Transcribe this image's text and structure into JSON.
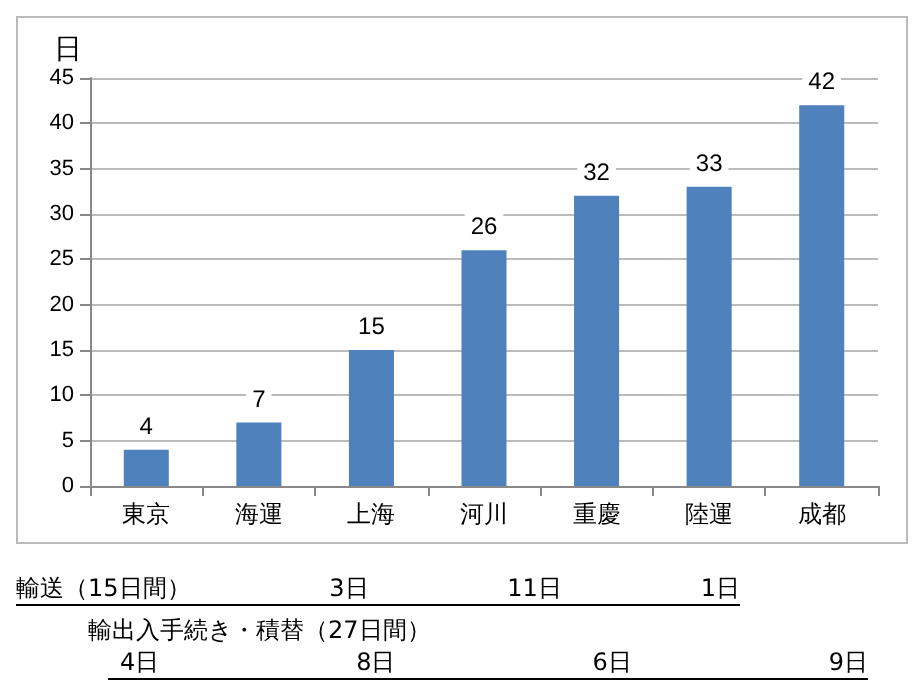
{
  "chart_data": {
    "type": "bar",
    "ylabel": "日",
    "categories": [
      "東京",
      "海運",
      "上海",
      "河川",
      "重慶",
      "陸運",
      "成都"
    ],
    "values": [
      4,
      7,
      15,
      26,
      32,
      33,
      42
    ],
    "color": "#4f81bd",
    "ylim": [
      0,
      45
    ],
    "yticks": [
      0,
      5,
      10,
      15,
      20,
      25,
      30,
      35,
      40,
      45
    ],
    "grid": "y",
    "data_labels": true,
    "annotations": [
      "輸送（15日間）",
      "3日",
      "11日",
      "1日",
      "輸出入手続き・積替（27日間）",
      "4日",
      "8日",
      "6日",
      "9日"
    ]
  }
}
